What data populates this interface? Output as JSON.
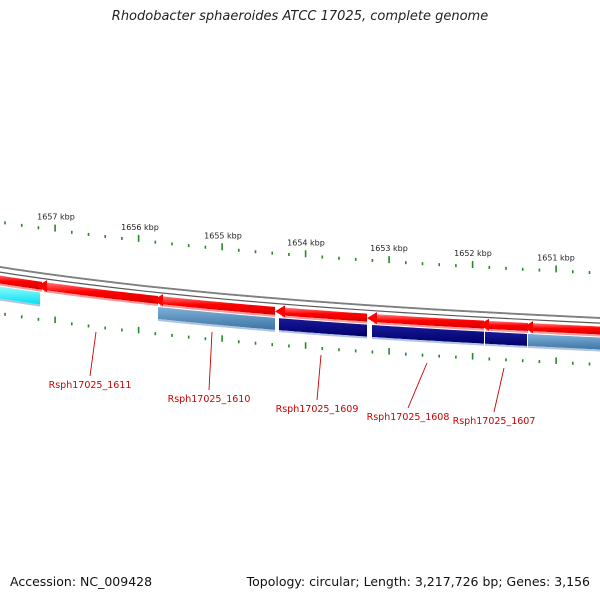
{
  "title": "Rhodobacter sphaeroides ATCC 17025, complete genome",
  "kbp_labels": [
    {
      "text": "1657 kbp",
      "value": 1657
    },
    {
      "text": "1656 kbp",
      "value": 1656
    },
    {
      "text": "1655 kbp",
      "value": 1655
    },
    {
      "text": "1654 kbp",
      "value": 1654
    },
    {
      "text": "1653 kbp",
      "value": 1653
    },
    {
      "text": "1652 kbp",
      "value": 1652
    },
    {
      "text": "1651 kbp",
      "value": 1651
    }
  ],
  "genes": [
    {
      "label": "Rsph17025_1611"
    },
    {
      "label": "Rsph17025_1610"
    },
    {
      "label": "Rsph17025_1609"
    },
    {
      "label": "Rsph17025_1608"
    },
    {
      "label": "Rsph17025_1607"
    }
  ],
  "colors": {
    "forward_strand": "#ff0000",
    "reverse_dark": "#000080",
    "reverse_light": "#4682b4",
    "reverse_cyan": "#00ffff",
    "backbone": "#808080",
    "tick": "#228b22",
    "label": "#cc0000"
  },
  "footer": {
    "accession": "Accession: NC_009428",
    "stats": "Topology: circular; Length: 3,217,726 bp; Genes: 3,156"
  }
}
